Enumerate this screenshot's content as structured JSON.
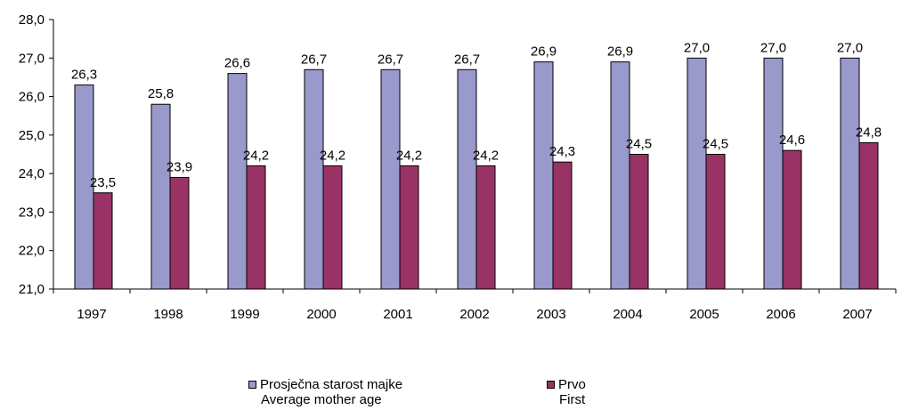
{
  "chart_data": {
    "type": "bar",
    "categories": [
      "1997",
      "1998",
      "1999",
      "2000",
      "2001",
      "2002",
      "2003",
      "2004",
      "2005",
      "2006",
      "2007"
    ],
    "series": [
      {
        "name": "Prosječna starost majke",
        "name_en": "Average mother age",
        "color": "#9999cc",
        "values": [
          26.3,
          25.8,
          26.6,
          26.7,
          26.7,
          26.7,
          26.9,
          26.9,
          27.0,
          27.0,
          27.0
        ],
        "labels": [
          "26,3",
          "25,8",
          "26,6",
          "26,7",
          "26,7",
          "26,7",
          "26,9",
          "26,9",
          "27,0",
          "27,0",
          "27,0"
        ]
      },
      {
        "name": "Prvo",
        "name_en": "First",
        "color": "#993366",
        "values": [
          23.5,
          23.9,
          24.2,
          24.2,
          24.2,
          24.2,
          24.3,
          24.5,
          24.5,
          24.6,
          24.8
        ],
        "labels": [
          "23,5",
          "23,9",
          "24,2",
          "24,2",
          "24,2",
          "24,2",
          "24,3",
          "24,5",
          "24,5",
          "24,6",
          "24,8"
        ]
      }
    ],
    "y_ticks": [
      "21,0",
      "22,0",
      "23,0",
      "24,0",
      "25,0",
      "26,0",
      "27,0",
      "28,0"
    ],
    "ylim": [
      21,
      28
    ],
    "grid": false,
    "legend_position": "bottom"
  }
}
